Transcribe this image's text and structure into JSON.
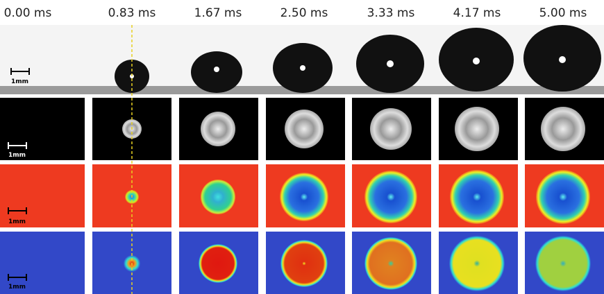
{
  "columns": [
    "0.00 ms",
    "0.83 ms",
    "1.67 ms",
    "2.50 ms",
    "3.33 ms",
    "4.17 ms",
    "5.00 ms"
  ],
  "rows": [
    {
      "scale_label": "1mm"
    },
    {
      "scale_label": "1mm"
    },
    {
      "scale_label": "1mm"
    },
    {
      "scale_label": "1mm"
    }
  ]
}
